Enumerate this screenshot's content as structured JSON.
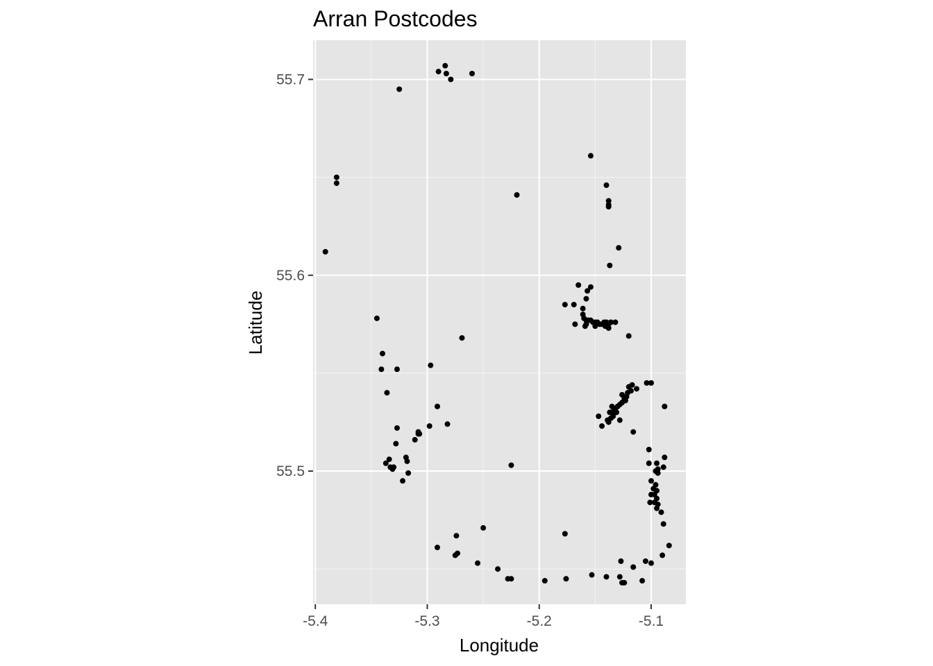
{
  "chart_data": {
    "type": "scatter",
    "title": "Arran Postcodes",
    "xlabel": "Longitude",
    "ylabel": "Latitude",
    "xlim": [
      -5.402,
      -5.069
    ],
    "ylim": [
      55.432,
      55.72
    ],
    "xticks": [
      -5.4,
      -5.3,
      -5.2,
      -5.1
    ],
    "xtick_labels": [
      "-5.4",
      "-5.3",
      "-5.2",
      "-5.1"
    ],
    "yticks": [
      55.5,
      55.6,
      55.7
    ],
    "ytick_labels": [
      "55.5",
      "55.6",
      "55.7"
    ],
    "grid": true,
    "legend": "none",
    "colors": {
      "panel": "#e5e5e5",
      "grid": "#ffffff",
      "point": "#000000",
      "tick": "#333333"
    },
    "points": [
      [
        -5.284,
        55.707
      ],
      [
        -5.29,
        55.704
      ],
      [
        -5.283,
        55.703
      ],
      [
        -5.279,
        55.7
      ],
      [
        -5.26,
        55.703
      ],
      [
        -5.325,
        55.695
      ],
      [
        -5.381,
        55.65
      ],
      [
        -5.381,
        55.647
      ],
      [
        -5.391,
        55.612
      ],
      [
        -5.22,
        55.641
      ],
      [
        -5.154,
        55.661
      ],
      [
        -5.14,
        55.646
      ],
      [
        -5.138,
        55.638
      ],
      [
        -5.138,
        55.635
      ],
      [
        -5.138,
        55.636
      ],
      [
        -5.129,
        55.614
      ],
      [
        -5.137,
        55.605
      ],
      [
        -5.165,
        55.595
      ],
      [
        -5.154,
        55.594
      ],
      [
        -5.157,
        55.592
      ],
      [
        -5.158,
        55.588
      ],
      [
        -5.177,
        55.585
      ],
      [
        -5.169,
        55.585
      ],
      [
        -5.161,
        55.583
      ],
      [
        -5.161,
        55.58
      ],
      [
        -5.16,
        55.578
      ],
      [
        -5.158,
        55.577
      ],
      [
        -5.156,
        55.577
      ],
      [
        -5.154,
        55.577
      ],
      [
        -5.152,
        55.576
      ],
      [
        -5.15,
        55.576
      ],
      [
        -5.148,
        55.576
      ],
      [
        -5.146,
        55.575
      ],
      [
        -5.144,
        55.575
      ],
      [
        -5.142,
        55.576
      ],
      [
        -5.14,
        55.576
      ],
      [
        -5.138,
        55.575
      ],
      [
        -5.136,
        55.576
      ],
      [
        -5.132,
        55.576
      ],
      [
        -5.158,
        55.575
      ],
      [
        -5.168,
        55.575
      ],
      [
        -5.159,
        55.574
      ],
      [
        -5.15,
        55.574
      ],
      [
        -5.141,
        55.574
      ],
      [
        -5.138,
        55.573
      ],
      [
        -5.12,
        55.569
      ],
      [
        -5.345,
        55.578
      ],
      [
        -5.269,
        55.568
      ],
      [
        -5.34,
        55.56
      ],
      [
        -5.341,
        55.552
      ],
      [
        -5.327,
        55.552
      ],
      [
        -5.297,
        55.554
      ],
      [
        -5.336,
        55.54
      ],
      [
        -5.291,
        55.533
      ],
      [
        -5.282,
        55.524
      ],
      [
        -5.298,
        55.523
      ],
      [
        -5.327,
        55.522
      ],
      [
        -5.308,
        55.52
      ],
      [
        -5.308,
        55.519
      ],
      [
        -5.307,
        55.519
      ],
      [
        -5.311,
        55.516
      ],
      [
        -5.328,
        55.514
      ],
      [
        -5.319,
        55.507
      ],
      [
        -5.318,
        55.505
      ],
      [
        -5.334,
        55.506
      ],
      [
        -5.337,
        55.504
      ],
      [
        -5.333,
        55.502
      ],
      [
        -5.331,
        55.501
      ],
      [
        -5.33,
        55.502
      ],
      [
        -5.317,
        55.499
      ],
      [
        -5.322,
        55.495
      ],
      [
        -5.225,
        55.503
      ],
      [
        -5.104,
        55.545
      ],
      [
        -5.1,
        55.545
      ],
      [
        -5.117,
        55.544
      ],
      [
        -5.12,
        55.543
      ],
      [
        -5.113,
        55.542
      ],
      [
        -5.118,
        55.541
      ],
      [
        -5.121,
        55.54
      ],
      [
        -5.122,
        55.538
      ],
      [
        -5.124,
        55.537
      ],
      [
        -5.126,
        55.539
      ],
      [
        -5.123,
        55.536
      ],
      [
        -5.126,
        55.535
      ],
      [
        -5.128,
        55.534
      ],
      [
        -5.13,
        55.533
      ],
      [
        -5.132,
        55.532
      ],
      [
        -5.135,
        55.533
      ],
      [
        -5.133,
        55.531
      ],
      [
        -5.135,
        55.53
      ],
      [
        -5.137,
        55.53
      ],
      [
        -5.131,
        55.53
      ],
      [
        -5.134,
        55.528
      ],
      [
        -5.136,
        55.527
      ],
      [
        -5.139,
        55.526
      ],
      [
        -5.138,
        55.525
      ],
      [
        -5.128,
        55.526
      ],
      [
        -5.147,
        55.528
      ],
      [
        -5.144,
        55.523
      ],
      [
        -5.116,
        55.52
      ],
      [
        -5.088,
        55.533
      ],
      [
        -5.102,
        55.511
      ],
      [
        -5.088,
        55.507
      ],
      [
        -5.095,
        55.504
      ],
      [
        -5.102,
        55.504
      ],
      [
        -5.089,
        55.502
      ],
      [
        -5.094,
        55.501
      ],
      [
        -5.096,
        55.5
      ],
      [
        -5.094,
        55.499
      ],
      [
        -5.1,
        55.495
      ],
      [
        -5.096,
        55.493
      ],
      [
        -5.098,
        55.491
      ],
      [
        -5.095,
        55.49
      ],
      [
        -5.097,
        55.488
      ],
      [
        -5.1,
        55.488
      ],
      [
        -5.095,
        55.486
      ],
      [
        -5.101,
        55.484
      ],
      [
        -5.097,
        55.484
      ],
      [
        -5.094,
        55.483
      ],
      [
        -5.095,
        55.481
      ],
      [
        -5.091,
        55.479
      ],
      [
        -5.089,
        55.473
      ],
      [
        -5.25,
        55.471
      ],
      [
        -5.274,
        55.467
      ],
      [
        -5.177,
        55.468
      ],
      [
        -5.291,
        55.461
      ],
      [
        -5.275,
        55.457
      ],
      [
        -5.273,
        55.458
      ],
      [
        -5.255,
        55.453
      ],
      [
        -5.237,
        55.45
      ],
      [
        -5.228,
        55.445
      ],
      [
        -5.225,
        55.445
      ],
      [
        -5.195,
        55.444
      ],
      [
        -5.176,
        55.445
      ],
      [
        -5.153,
        55.447
      ],
      [
        -5.14,
        55.446
      ],
      [
        -5.128,
        55.446
      ],
      [
        -5.127,
        55.454
      ],
      [
        -5.116,
        55.451
      ],
      [
        -5.105,
        55.454
      ],
      [
        -5.1,
        55.453
      ],
      [
        -5.126,
        55.443
      ],
      [
        -5.124,
        55.443
      ],
      [
        -5.108,
        55.444
      ],
      [
        -5.09,
        55.457
      ],
      [
        -5.084,
        55.462
      ]
    ]
  }
}
